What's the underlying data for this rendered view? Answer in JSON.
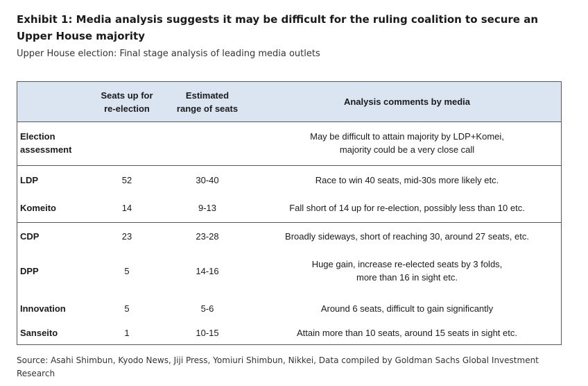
{
  "title": "Exhibit 1: Media analysis suggests it may be difficult for the ruling coalition to secure an Upper House majority",
  "subtitle": "Upper House election: Final stage analysis of leading media outlets",
  "headers": {
    "seats": "Seats up for\nre-election",
    "range": "Estimated\nrange of seats",
    "comment": "Analysis comments by media"
  },
  "assessment": {
    "name": "Election\nassessment",
    "comment": "May be difficult to attain majority by LDP+Komei,\nmajority could be a very close call"
  },
  "rows": [
    {
      "name": "LDP",
      "seats": "52",
      "range": "30-40",
      "comment": "Race to win 40 seats, mid-30s more likely etc."
    },
    {
      "name": "Komeito",
      "seats": "14",
      "range": "9-13",
      "comment": "Fall short of 14 up for re-election, possibly less than 10 etc."
    },
    {
      "name": "CDP",
      "seats": "23",
      "range": "23-28",
      "comment": "Broadly sideways, short of reaching 30, around 27 seats, etc."
    },
    {
      "name": "DPP",
      "seats": "5",
      "range": "14-16",
      "comment": "Huge gain, increase re-elected seats by 3 folds,\nmore than 16 in sight etc."
    },
    {
      "name": "Innovation",
      "seats": "5",
      "range": "5-6",
      "comment": "Around 6 seats, difficult to gain significantly"
    },
    {
      "name": "Sanseito",
      "seats": "1",
      "range": "10-15",
      "comment": "Attain more than 10 seats, around 15 seats in sight etc."
    }
  ],
  "source": "Source: Asahi Shimbun, Kyodo News, Jiji Press, Yomiuri Shimbun, Nikkei, Data compiled by Goldman Sachs Global Investment Research"
}
